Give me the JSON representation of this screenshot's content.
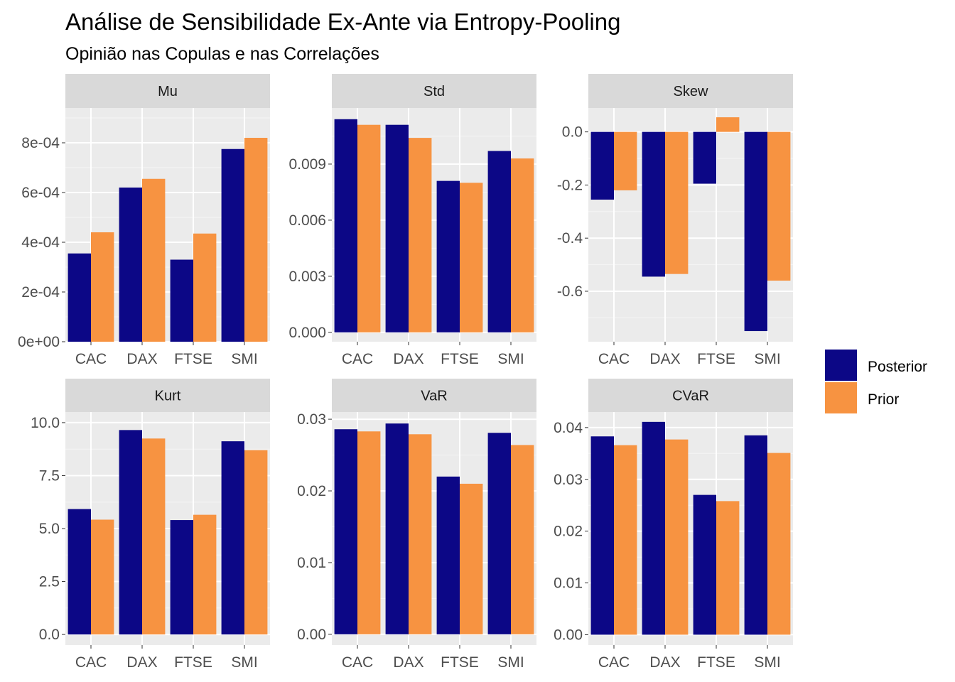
{
  "title": "Análise de Sensibilidade Ex-Ante via Entropy-Pooling",
  "subtitle": "Opinião nas Copulas e nas Correlações",
  "legend": [
    {
      "name": "Posterior",
      "color": "#0C0786"
    },
    {
      "name": "Prior",
      "color": "#F79341"
    }
  ],
  "chart_data": {
    "type": "bar",
    "layout": "facet-grid-2x3",
    "categories": [
      "CAC",
      "DAX",
      "FTSE",
      "SMI"
    ],
    "legend_position": "right",
    "grid": true,
    "panels": [
      {
        "name": "Mu",
        "ylim": [
          0,
          0.00094
        ],
        "ticks": [
          0,
          0.0002,
          0.0004,
          0.0006,
          0.0008
        ],
        "tick_labels": [
          "0e+00",
          "2e-04",
          "4e-04",
          "6e-04",
          "8e-04"
        ],
        "series": [
          {
            "name": "Posterior",
            "values": [
              0.000355,
              0.00062,
              0.00033,
              0.000775
            ]
          },
          {
            "name": "Prior",
            "values": [
              0.00044,
              0.000655,
              0.000435,
              0.00082
            ]
          }
        ]
      },
      {
        "name": "Std",
        "ylim": [
          -0.0005,
          0.012
        ],
        "ticks": [
          0,
          0.003,
          0.006,
          0.009
        ],
        "tick_labels": [
          "0.000",
          "0.003",
          "0.006",
          "0.009"
        ],
        "series": [
          {
            "name": "Posterior",
            "values": [
              0.0114,
              0.0111,
              0.0081,
              0.0097
            ]
          },
          {
            "name": "Prior",
            "values": [
              0.0111,
              0.0104,
              0.008,
              0.0093
            ]
          }
        ]
      },
      {
        "name": "Skew",
        "ylim": [
          -0.79,
          0.09
        ],
        "ticks": [
          0,
          -0.2,
          -0.4,
          -0.6
        ],
        "tick_labels": [
          "0.0",
          "-0.2",
          "-0.4",
          "-0.6"
        ],
        "series": [
          {
            "name": "Posterior",
            "values": [
              -0.255,
              -0.545,
              -0.195,
              -0.75
            ]
          },
          {
            "name": "Prior",
            "values": [
              -0.22,
              -0.535,
              0.055,
              -0.56
            ]
          }
        ]
      },
      {
        "name": "Kurt",
        "ylim": [
          -0.5,
          10.5
        ],
        "ticks": [
          0,
          2.5,
          5,
          7.5,
          10
        ],
        "tick_labels": [
          "0.0",
          "2.5",
          "5.0",
          "7.5",
          "10.0"
        ],
        "series": [
          {
            "name": "Posterior",
            "values": [
              5.92,
              9.65,
              5.4,
              9.12
            ]
          },
          {
            "name": "Prior",
            "values": [
              5.42,
              9.25,
              5.65,
              8.7
            ]
          }
        ]
      },
      {
        "name": "VaR",
        "ylim": [
          -0.0015,
          0.031
        ],
        "ticks": [
          0,
          0.01,
          0.02,
          0.03
        ],
        "tick_labels": [
          "0.00",
          "0.01",
          "0.02",
          "0.03"
        ],
        "series": [
          {
            "name": "Posterior",
            "values": [
              0.0286,
              0.0294,
              0.022,
              0.0281
            ]
          },
          {
            "name": "Prior",
            "values": [
              0.0283,
              0.0279,
              0.021,
              0.0264
            ]
          }
        ]
      },
      {
        "name": "CVaR",
        "ylim": [
          -0.002,
          0.043
        ],
        "ticks": [
          0,
          0.01,
          0.02,
          0.03,
          0.04
        ],
        "tick_labels": [
          "0.00",
          "0.01",
          "0.02",
          "0.03",
          "0.04"
        ],
        "series": [
          {
            "name": "Posterior",
            "values": [
              0.0383,
              0.0411,
              0.027,
              0.0385
            ]
          },
          {
            "name": "Prior",
            "values": [
              0.0366,
              0.0377,
              0.0258,
              0.0351
            ]
          }
        ]
      }
    ]
  }
}
